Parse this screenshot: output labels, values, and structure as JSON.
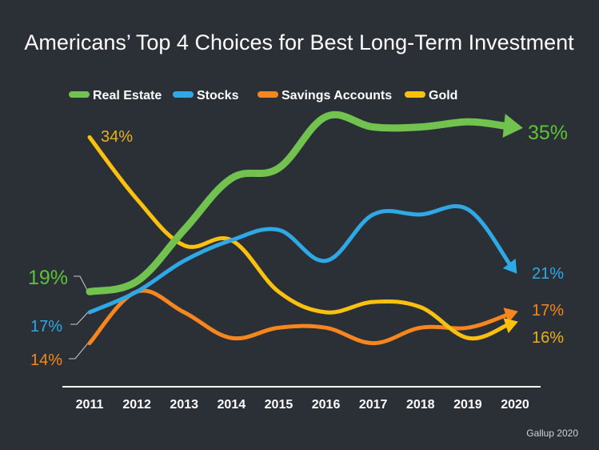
{
  "chart_data": {
    "type": "line",
    "title": "Americans’ Top 4 Choices for Best Long-Term Investment",
    "categories": [
      "2011",
      "2012",
      "2013",
      "2014",
      "2015",
      "2016",
      "2017",
      "2018",
      "2019",
      "2020"
    ],
    "ylim": [
      10,
      38
    ],
    "grid": false,
    "legend_position": "top",
    "series": [
      {
        "name": "Real Estate",
        "color": "#72c250",
        "label_color": "#5cc23a",
        "values": [
          19,
          20,
          25,
          30,
          31,
          36,
          35,
          35,
          35.5,
          35
        ],
        "start_label": "19%",
        "end_label": "35%"
      },
      {
        "name": "Stocks",
        "color": "#2fa9e6",
        "label_color": "#2fa9e6",
        "values": [
          17,
          19,
          22,
          24,
          25,
          22,
          26.5,
          26.5,
          27,
          21
        ],
        "start_label": "17%",
        "end_label": "21%"
      },
      {
        "name": "Savings Accounts",
        "color": "#f7861e",
        "label_color": "#f7861e",
        "values": [
          14,
          19,
          17,
          14.5,
          15.5,
          15.5,
          14,
          15.5,
          15.5,
          17
        ],
        "start_label": "14%",
        "end_label": "17%"
      },
      {
        "name": "Gold",
        "color": "#fcc10f",
        "label_color": "#e8b020",
        "values": [
          34,
          28,
          23.5,
          24,
          19,
          17,
          18,
          17.5,
          14.5,
          16
        ],
        "start_label": "34%",
        "end_label": "16%"
      }
    ],
    "source": "Gallup 2020"
  }
}
